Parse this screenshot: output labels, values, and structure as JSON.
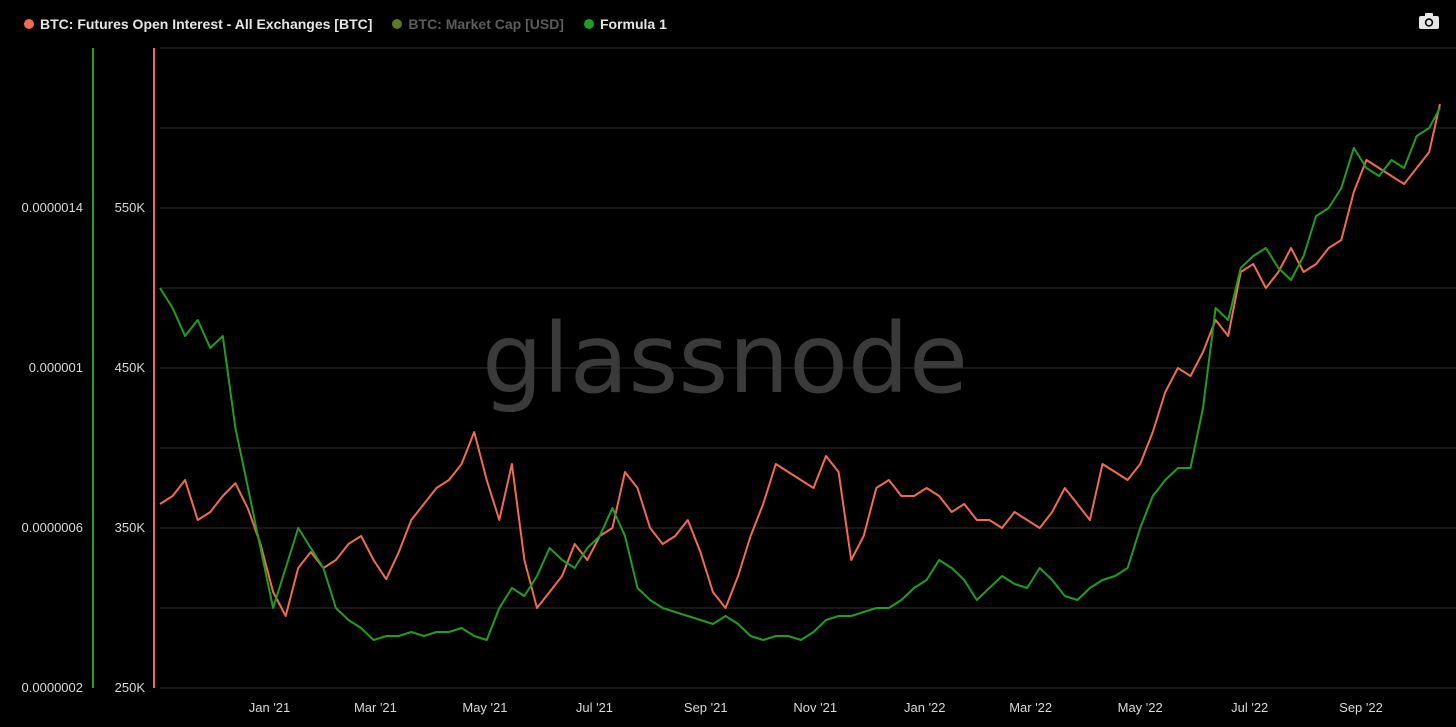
{
  "legend": {
    "items": [
      {
        "label": "BTC: Futures Open Interest - All Exchanges [BTC]",
        "color": "#f26b4f",
        "enabled": true
      },
      {
        "label": "BTC: Market Cap [USD]",
        "color": "#5a7a1e",
        "enabled": false
      },
      {
        "label": "Formula 1",
        "color": "#1f9e1f",
        "enabled": true
      }
    ]
  },
  "watermark": "glassnode",
  "icons": {
    "camera": "camera-icon"
  },
  "chart_data": {
    "type": "line",
    "x_ticks": [
      "Jan '21",
      "Mar '21",
      "May '21",
      "Jul '21",
      "Sep '21",
      "Nov '21",
      "Jan '22",
      "Mar '22",
      "May '22",
      "Jul '22",
      "Sep '22"
    ],
    "x_tick_dates": [
      "2021-01-01",
      "2021-03-01",
      "2021-05-01",
      "2021-07-01",
      "2021-09-01",
      "2021-11-01",
      "2022-01-01",
      "2022-03-01",
      "2022-05-01",
      "2022-07-01",
      "2022-09-01"
    ],
    "x_range": [
      "2020-11-01",
      "2022-10-15"
    ],
    "left_axis": {
      "ticks": [
        "0.0000002",
        "0.0000006",
        "0.000001",
        "0.0000014"
      ],
      "values": [
        2e-07,
        6e-07,
        1e-06,
        1.4e-06
      ],
      "color": "#1f9e1f",
      "ylim": [
        2e-07,
        1.8e-06
      ]
    },
    "right_axis": {
      "ticks": [
        "250K",
        "350K",
        "450K",
        "550K"
      ],
      "values": [
        250000,
        350000,
        450000,
        550000
      ],
      "color": "#f26b4f",
      "ylim": [
        250000,
        650000
      ]
    },
    "grid": true,
    "legend_position": "top-left",
    "series": [
      {
        "name": "BTC: Futures Open Interest - All Exchanges [BTC]",
        "axis": "right",
        "color": "#f26b4f",
        "x": [
          "2020-11-01",
          "2020-11-08",
          "2020-11-15",
          "2020-11-22",
          "2020-11-29",
          "2020-12-06",
          "2020-12-13",
          "2020-12-20",
          "2020-12-27",
          "2021-01-03",
          "2021-01-10",
          "2021-01-17",
          "2021-01-24",
          "2021-01-31",
          "2021-02-07",
          "2021-02-14",
          "2021-02-21",
          "2021-02-28",
          "2021-03-07",
          "2021-03-14",
          "2021-03-21",
          "2021-03-28",
          "2021-04-04",
          "2021-04-11",
          "2021-04-18",
          "2021-04-25",
          "2021-05-02",
          "2021-05-09",
          "2021-05-16",
          "2021-05-23",
          "2021-05-30",
          "2021-06-06",
          "2021-06-13",
          "2021-06-20",
          "2021-06-27",
          "2021-07-04",
          "2021-07-11",
          "2021-07-18",
          "2021-07-25",
          "2021-08-01",
          "2021-08-08",
          "2021-08-15",
          "2021-08-22",
          "2021-08-29",
          "2021-09-05",
          "2021-09-12",
          "2021-09-19",
          "2021-09-26",
          "2021-10-03",
          "2021-10-10",
          "2021-10-17",
          "2021-10-24",
          "2021-10-31",
          "2021-11-07",
          "2021-11-14",
          "2021-11-21",
          "2021-11-28",
          "2021-12-05",
          "2021-12-12",
          "2021-12-19",
          "2021-12-26",
          "2022-01-02",
          "2022-01-09",
          "2022-01-16",
          "2022-01-23",
          "2022-01-30",
          "2022-02-06",
          "2022-02-13",
          "2022-02-20",
          "2022-02-27",
          "2022-03-06",
          "2022-03-13",
          "2022-03-20",
          "2022-03-27",
          "2022-04-03",
          "2022-04-10",
          "2022-04-17",
          "2022-04-24",
          "2022-05-01",
          "2022-05-08",
          "2022-05-15",
          "2022-05-22",
          "2022-05-29",
          "2022-06-05",
          "2022-06-12",
          "2022-06-19",
          "2022-06-26",
          "2022-07-03",
          "2022-07-10",
          "2022-07-17",
          "2022-07-24",
          "2022-07-31",
          "2022-08-07",
          "2022-08-14",
          "2022-08-21",
          "2022-08-28",
          "2022-09-04",
          "2022-09-11",
          "2022-09-18",
          "2022-09-25",
          "2022-10-02",
          "2022-10-09",
          "2022-10-15"
        ],
        "y": [
          365000,
          370000,
          380000,
          355000,
          360000,
          370000,
          378000,
          362000,
          340000,
          310000,
          295000,
          325000,
          335000,
          325000,
          330000,
          340000,
          345000,
          330000,
          318000,
          335000,
          355000,
          365000,
          375000,
          380000,
          390000,
          410000,
          380000,
          355000,
          390000,
          330000,
          300000,
          310000,
          320000,
          340000,
          330000,
          345000,
          350000,
          385000,
          375000,
          350000,
          340000,
          345000,
          355000,
          335000,
          310000,
          300000,
          320000,
          345000,
          365000,
          390000,
          385000,
          380000,
          375000,
          395000,
          385000,
          330000,
          345000,
          375000,
          380000,
          370000,
          370000,
          375000,
          370000,
          360000,
          365000,
          355000,
          355000,
          350000,
          360000,
          355000,
          350000,
          360000,
          375000,
          365000,
          355000,
          390000,
          385000,
          380000,
          390000,
          410000,
          435000,
          450000,
          445000,
          460000,
          480000,
          470000,
          510000,
          515000,
          500000,
          510000,
          525000,
          510000,
          515000,
          525000,
          530000,
          560000,
          580000,
          575000,
          570000,
          565000,
          575000,
          585000,
          615000
        ]
      },
      {
        "name": "Formula 1",
        "axis": "left",
        "color": "#1f9e1f",
        "x": [
          "2020-11-01",
          "2020-11-08",
          "2020-11-15",
          "2020-11-22",
          "2020-11-29",
          "2020-12-06",
          "2020-12-13",
          "2020-12-20",
          "2020-12-27",
          "2021-01-03",
          "2021-01-10",
          "2021-01-17",
          "2021-01-24",
          "2021-01-31",
          "2021-02-07",
          "2021-02-14",
          "2021-02-21",
          "2021-02-28",
          "2021-03-07",
          "2021-03-14",
          "2021-03-21",
          "2021-03-28",
          "2021-04-04",
          "2021-04-11",
          "2021-04-18",
          "2021-04-25",
          "2021-05-02",
          "2021-05-09",
          "2021-05-16",
          "2021-05-23",
          "2021-05-30",
          "2021-06-06",
          "2021-06-13",
          "2021-06-20",
          "2021-06-27",
          "2021-07-04",
          "2021-07-11",
          "2021-07-18",
          "2021-07-25",
          "2021-08-01",
          "2021-08-08",
          "2021-08-15",
          "2021-08-22",
          "2021-08-29",
          "2021-09-05",
          "2021-09-12",
          "2021-09-19",
          "2021-09-26",
          "2021-10-03",
          "2021-10-10",
          "2021-10-17",
          "2021-10-24",
          "2021-10-31",
          "2021-11-07",
          "2021-11-14",
          "2021-11-21",
          "2021-11-28",
          "2021-12-05",
          "2021-12-12",
          "2021-12-19",
          "2021-12-26",
          "2022-01-02",
          "2022-01-09",
          "2022-01-16",
          "2022-01-23",
          "2022-01-30",
          "2022-02-06",
          "2022-02-13",
          "2022-02-20",
          "2022-02-27",
          "2022-03-06",
          "2022-03-13",
          "2022-03-20",
          "2022-03-27",
          "2022-04-03",
          "2022-04-10",
          "2022-04-17",
          "2022-04-24",
          "2022-05-01",
          "2022-05-08",
          "2022-05-15",
          "2022-05-22",
          "2022-05-29",
          "2022-06-05",
          "2022-06-12",
          "2022-06-19",
          "2022-06-26",
          "2022-07-03",
          "2022-07-10",
          "2022-07-17",
          "2022-07-24",
          "2022-07-31",
          "2022-08-07",
          "2022-08-14",
          "2022-08-21",
          "2022-08-28",
          "2022-09-04",
          "2022-09-11",
          "2022-09-18",
          "2022-09-25",
          "2022-10-02",
          "2022-10-09",
          "2022-10-15"
        ],
        "y": [
          1.2e-06,
          1.15e-06,
          1.08e-06,
          1.12e-06,
          1.05e-06,
          1.08e-06,
          8.5e-07,
          7e-07,
          5.5e-07,
          4e-07,
          5e-07,
          6e-07,
          5.5e-07,
          5e-07,
          4e-07,
          3.7e-07,
          3.5e-07,
          3.2e-07,
          3.3e-07,
          3.3e-07,
          3.4e-07,
          3.3e-07,
          3.4e-07,
          3.4e-07,
          3.5e-07,
          3.3e-07,
          3.2e-07,
          4e-07,
          4.5e-07,
          4.3e-07,
          4.8e-07,
          5.5e-07,
          5.2e-07,
          5e-07,
          5.5e-07,
          5.8e-07,
          6.5e-07,
          5.8e-07,
          4.5e-07,
          4.2e-07,
          4e-07,
          3.9e-07,
          3.8e-07,
          3.7e-07,
          3.6e-07,
          3.8e-07,
          3.6e-07,
          3.3e-07,
          3.2e-07,
          3.3e-07,
          3.3e-07,
          3.2e-07,
          3.4e-07,
          3.7e-07,
          3.8e-07,
          3.8e-07,
          3.9e-07,
          4e-07,
          4e-07,
          4.2e-07,
          4.5e-07,
          4.7e-07,
          5.2e-07,
          5e-07,
          4.7e-07,
          4.2e-07,
          4.5e-07,
          4.8e-07,
          4.6e-07,
          4.5e-07,
          5e-07,
          4.7e-07,
          4.3e-07,
          4.2e-07,
          4.5e-07,
          4.7e-07,
          4.8e-07,
          5e-07,
          6e-07,
          6.8e-07,
          7.2e-07,
          7.5e-07,
          7.5e-07,
          9e-07,
          1.15e-06,
          1.12e-06,
          1.25e-06,
          1.28e-06,
          1.3e-06,
          1.25e-06,
          1.22e-06,
          1.28e-06,
          1.38e-06,
          1.4e-06,
          1.45e-06,
          1.55e-06,
          1.5e-06,
          1.48e-06,
          1.52e-06,
          1.5e-06,
          1.58e-06,
          1.6e-06,
          1.65e-06
        ]
      }
    ]
  }
}
